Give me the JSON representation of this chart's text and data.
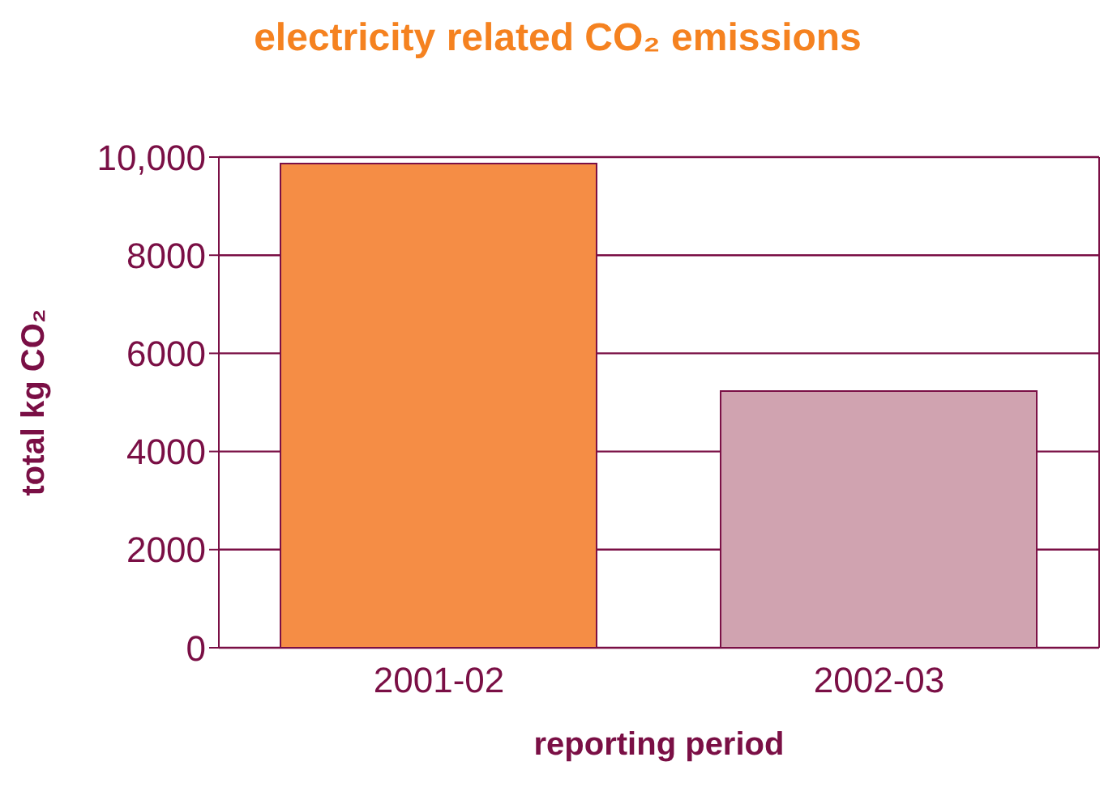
{
  "chart_data": {
    "type": "bar",
    "title": "electricity related CO₂ emissions",
    "xlabel": "reporting period",
    "ylabel": "total kg CO₂",
    "categories": [
      "2001-02",
      "2002-03"
    ],
    "values": [
      9870,
      5230
    ],
    "colors": [
      "#f58d45",
      "#d0a3b0"
    ],
    "ylim": [
      0,
      10000
    ],
    "yticks": [
      0,
      2000,
      4000,
      6000,
      8000,
      {
        "value": 10000,
        "label": "10,000"
      }
    ],
    "grid": "y"
  }
}
